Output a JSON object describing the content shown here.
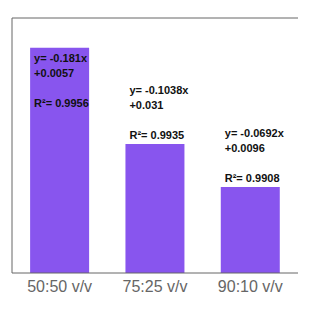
{
  "chart_data": {
    "type": "bar",
    "categories": [
      "50:50 v/v",
      "75:25 v/v",
      "90:10 v/v"
    ],
    "values": [
      0.181,
      0.1038,
      0.0692
    ],
    "color": "#8855EE",
    "ylim": [
      0,
      0.205
    ],
    "yticks": [],
    "grid": false,
    "tick_labels": "x",
    "annotations": [
      [
        "y= -0.181x",
        "+0.0057",
        "R²= 0.9956"
      ],
      [
        "y= -0.1038x",
        "+0.031",
        "R²= 0.9935"
      ],
      [
        "y= -0.0692x",
        "+0.0096",
        "R²= 0.9908"
      ]
    ]
  }
}
